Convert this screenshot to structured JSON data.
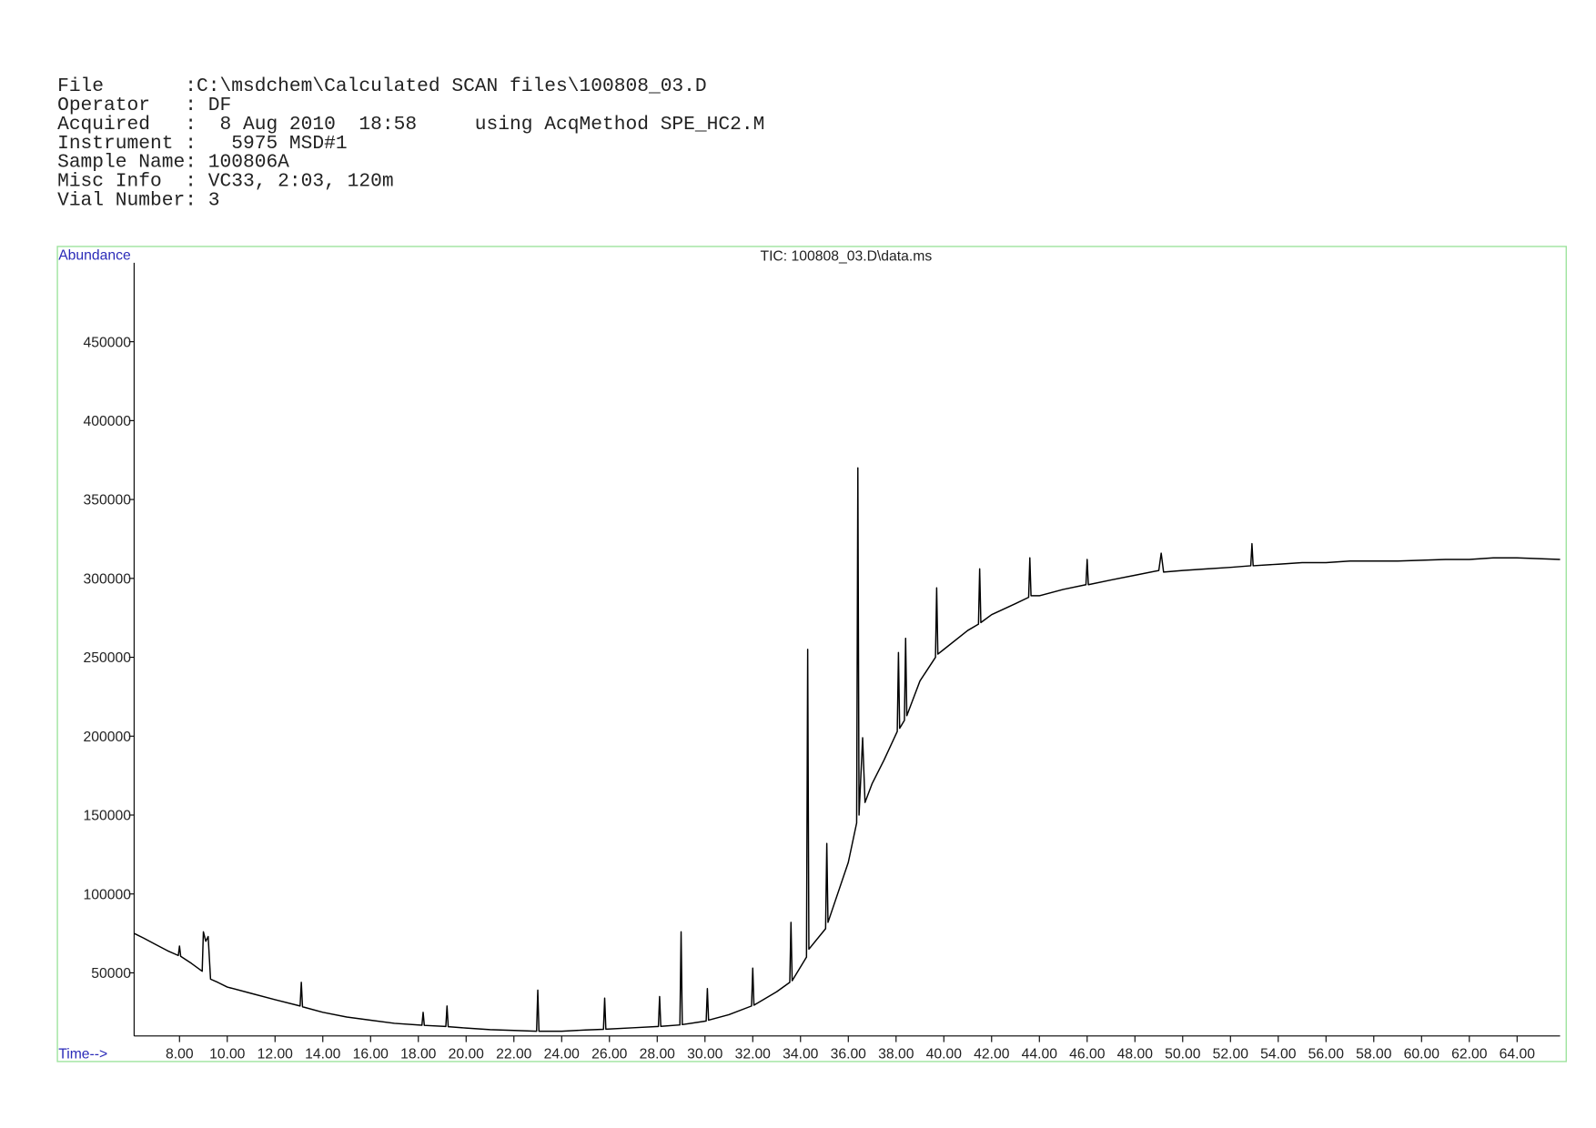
{
  "header": {
    "lines": [
      "File       :C:\\msdchem\\Calculated SCAN files\\100808_03.D",
      "Operator   : DF",
      "Acquired   :  8 Aug 2010  18:58     using AcqMethod SPE_HC2.M",
      "Instrument :   5975 MSD#1",
      "Sample Name: 100806A",
      "Misc Info  : VC33, 2:03, 120m",
      "Vial Number: 3"
    ]
  },
  "chart_data": {
    "type": "line",
    "title": "TIC: 100808_03.D\\data.ms",
    "y_label": "Abundance",
    "x_label": "Time-->",
    "color": "#000000",
    "xlim": [
      6.1,
      65.8
    ],
    "ylim": [
      10000,
      500000
    ],
    "yticks": [
      50000,
      100000,
      150000,
      200000,
      250000,
      300000,
      350000,
      400000,
      450000
    ],
    "xticks": [
      {
        "value": 8,
        "label": "8.00"
      },
      {
        "value": 10,
        "label": "10.00"
      },
      {
        "value": 12,
        "label": "12.00"
      },
      {
        "value": 14,
        "label": "14.00"
      },
      {
        "value": 16,
        "label": "16.00"
      },
      {
        "value": 18,
        "label": "18.00"
      },
      {
        "value": 20,
        "label": "20.00"
      },
      {
        "value": 22,
        "label": "22.00"
      },
      {
        "value": 24,
        "label": "24.00"
      },
      {
        "value": 26,
        "label": "26.00"
      },
      {
        "value": 28,
        "label": "28.00"
      },
      {
        "value": 30,
        "label": "30.00"
      },
      {
        "value": 32,
        "label": "32.00"
      },
      {
        "value": 34,
        "label": "34.00"
      },
      {
        "value": 36,
        "label": "36.00"
      },
      {
        "value": 38,
        "label": "38.00"
      },
      {
        "value": 40,
        "label": "40.00"
      },
      {
        "value": 42,
        "label": "42.00"
      },
      {
        "value": 44,
        "label": "44.00"
      },
      {
        "value": 46,
        "label": "46.00"
      },
      {
        "value": 48,
        "label": "48.00"
      },
      {
        "value": 50,
        "label": "50.00"
      },
      {
        "value": 52,
        "label": "52.00"
      },
      {
        "value": 54,
        "label": "54.00"
      },
      {
        "value": 56,
        "label": "56.00"
      },
      {
        "value": 58,
        "label": "58.00"
      },
      {
        "value": 60,
        "label": "60.00"
      },
      {
        "value": 62,
        "label": "62.00"
      },
      {
        "value": 64,
        "label": "64.00"
      }
    ],
    "x": [
      6.1,
      6.5,
      7,
      7.5,
      7.95,
      8.0,
      8.05,
      8.5,
      8.95,
      9.0,
      9.1,
      9.2,
      9.3,
      9.6,
      10,
      11,
      12,
      13.05,
      13.1,
      13.15,
      14,
      15,
      16,
      17,
      18.15,
      18.2,
      18.25,
      19.15,
      19.2,
      19.25,
      20,
      21,
      22,
      22.95,
      23.0,
      23.05,
      24,
      25,
      25.75,
      25.8,
      25.85,
      27,
      28.05,
      28.1,
      28.15,
      28.95,
      29.0,
      29.05,
      30.05,
      30.1,
      30.15,
      31,
      31.95,
      32.0,
      32.05,
      33,
      33.55,
      33.6,
      33.65,
      34.25,
      34.3,
      34.35,
      35.05,
      35.1,
      35.15,
      36,
      36.35,
      36.4,
      36.45,
      36.6,
      36.7,
      37,
      37.5,
      38.05,
      38.1,
      38.15,
      38.35,
      38.4,
      38.45,
      39,
      39.65,
      39.7,
      39.75,
      40,
      41,
      41.45,
      41.5,
      41.55,
      42,
      43,
      43.55,
      43.6,
      43.65,
      44,
      45,
      45.95,
      46.0,
      46.05,
      47,
      48,
      49,
      49.1,
      49.2,
      50,
      51,
      52,
      52.85,
      52.9,
      52.95,
      54,
      55,
      56,
      57,
      58,
      59,
      60,
      61,
      62,
      63,
      64,
      65.8
    ],
    "values": [
      75000,
      72000,
      68000,
      64000,
      61000,
      67000,
      60500,
      56000,
      51000,
      76000,
      70000,
      73000,
      46000,
      44000,
      41000,
      37000,
      33000,
      29000,
      44000,
      28500,
      25000,
      22000,
      20000,
      18000,
      16800,
      25000,
      16700,
      16000,
      29000,
      15900,
      15000,
      14000,
      13500,
      13000,
      39000,
      13000,
      13000,
      13800,
      14200,
      34000,
      14300,
      15200,
      16000,
      35000,
      16100,
      17000,
      76000,
      17200,
      19500,
      40000,
      20000,
      23500,
      29000,
      53000,
      29500,
      38000,
      44000,
      82000,
      45000,
      60000,
      255000,
      65000,
      78000,
      132000,
      82000,
      120000,
      145000,
      370000,
      150000,
      199000,
      158000,
      170000,
      185000,
      203000,
      253000,
      205000,
      210000,
      262000,
      213000,
      235000,
      250000,
      294000,
      252000,
      255000,
      267000,
      271000,
      306000,
      272000,
      277000,
      284000,
      288000,
      313000,
      289000,
      289000,
      293000,
      296000,
      312000,
      296000,
      299000,
      302000,
      305000,
      316000,
      304000,
      305000,
      306000,
      307000,
      308000,
      322000,
      308000,
      309000,
      310000,
      310000,
      311000,
      311000,
      311000,
      311500,
      312000,
      312000,
      313000,
      313000,
      312000
    ]
  }
}
